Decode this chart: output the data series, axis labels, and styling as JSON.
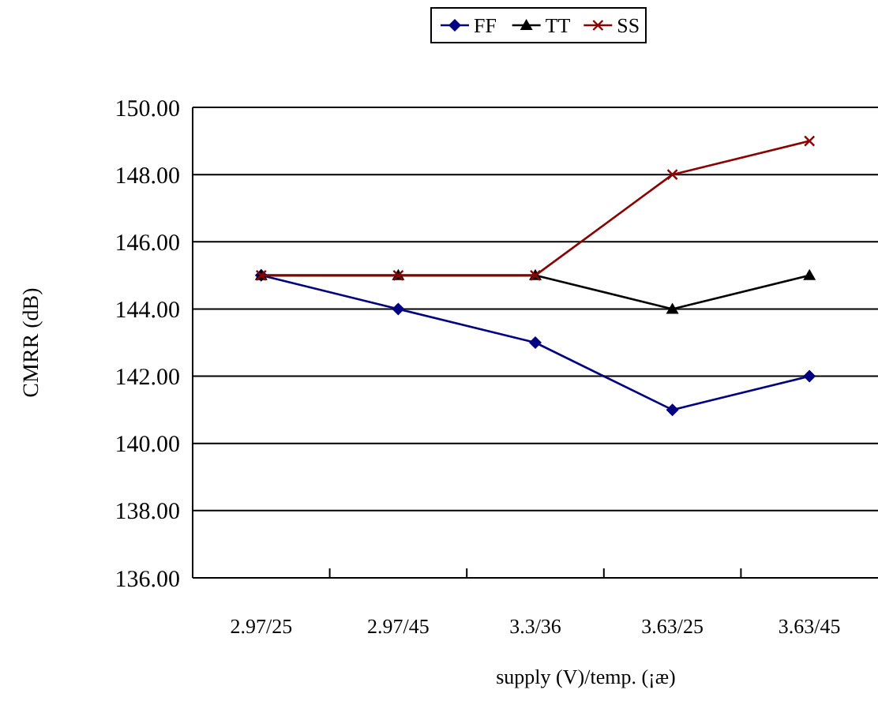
{
  "chart_data": {
    "type": "line",
    "xlabel": "supply (V)/temp. (¡æ)",
    "ylabel": "CMRR (dB)",
    "categories": [
      "2.97/25",
      "2.97/45",
      "3.3/36",
      "3.63/25",
      "3.63/45"
    ],
    "series": [
      {
        "name": "FF",
        "color": "#000080",
        "marker": "diamond",
        "values": [
          145,
          144,
          143,
          141,
          142
        ]
      },
      {
        "name": "TT",
        "color": "#000000",
        "marker": "triangle",
        "values": [
          145,
          145,
          145,
          144,
          145
        ]
      },
      {
        "name": "SS",
        "color": "#8b0000",
        "marker": "cross",
        "values": [
          145,
          145,
          145,
          148,
          149
        ]
      }
    ],
    "ylim": [
      136,
      150
    ],
    "yticks": [
      {
        "value": 136,
        "label": "136.00"
      },
      {
        "value": 138,
        "label": "138.00"
      },
      {
        "value": 140,
        "label": "140.00"
      },
      {
        "value": 142,
        "label": "142.00"
      },
      {
        "value": 144,
        "label": "144.00"
      },
      {
        "value": 146,
        "label": "146.00"
      },
      {
        "value": 148,
        "label": "148.00"
      },
      {
        "value": 150,
        "label": "150.00"
      }
    ],
    "grid": "y",
    "legend": "top"
  }
}
